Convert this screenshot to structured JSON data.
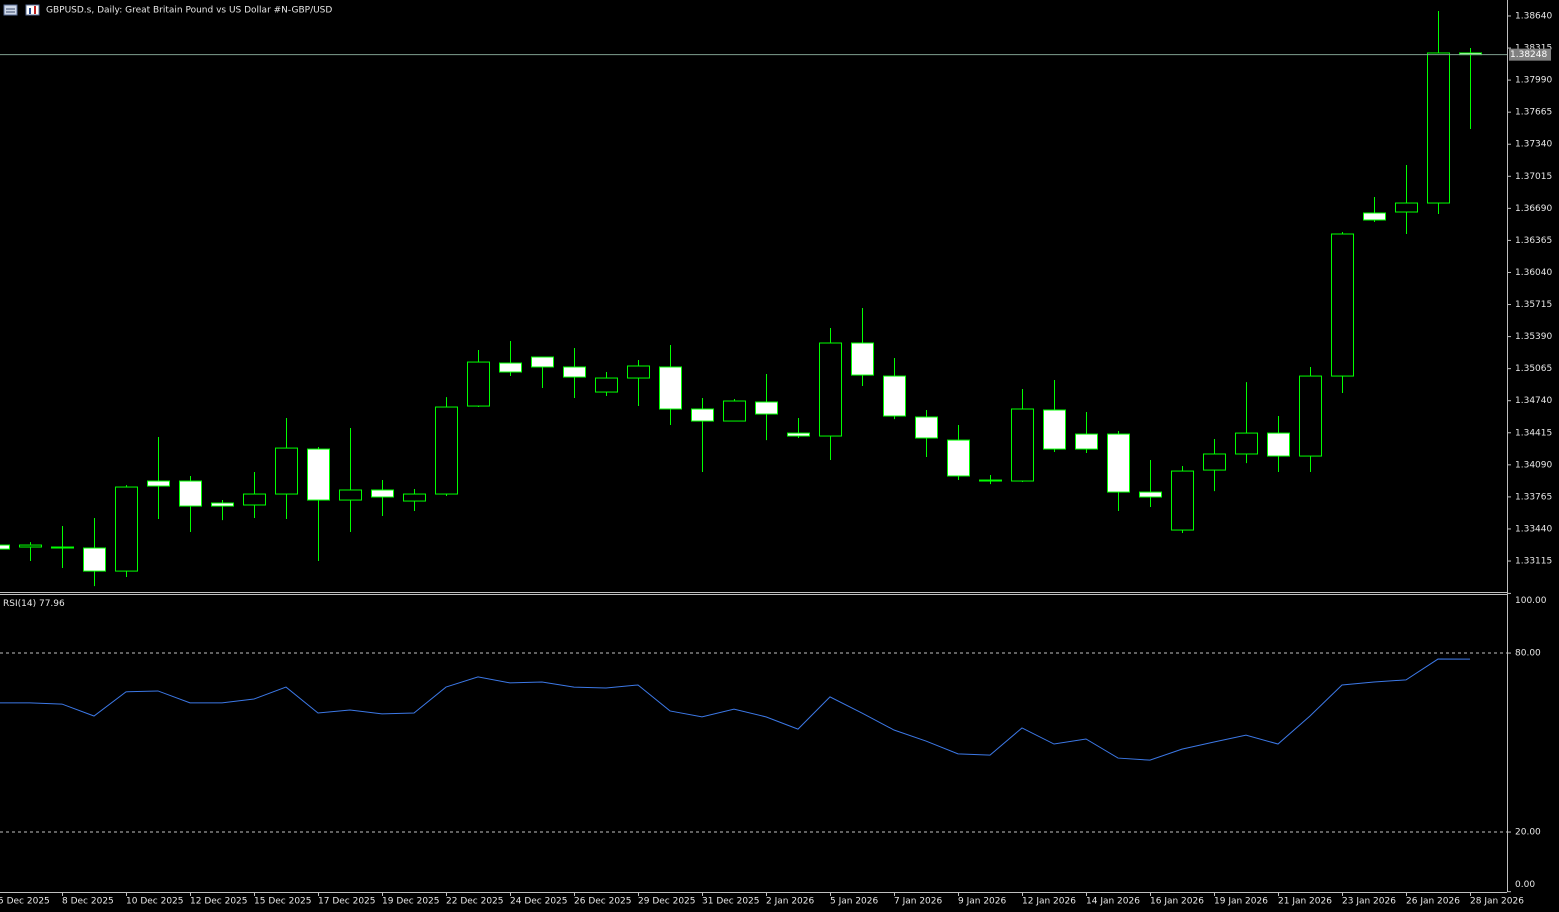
{
  "chart_data": [
    {
      "type": "candlestick",
      "title": "GBPUSD.s, Daily:  Great Britain Pound vs US Dollar #N-GBP/USD",
      "categories": [
        "5 Dec 2025",
        null,
        "8 Dec 2025",
        null,
        "10 Dec 2025",
        null,
        "12 Dec 2025",
        null,
        "15 Dec 2025",
        null,
        "17 Dec 2025",
        null,
        "19 Dec 2025",
        null,
        "22 Dec 2025",
        null,
        "24 Dec 2025",
        null,
        "26 Dec 2025",
        null,
        "29 Dec 2025",
        null,
        "31 Dec 2025",
        null,
        "2 Jan 2026",
        null,
        "5 Jan 2026",
        null,
        "7 Jan 2026",
        null,
        "9 Jan 2026",
        null,
        "12 Jan 2026",
        null,
        "14 Jan 2026",
        null,
        "16 Jan 2026",
        null,
        "19 Jan 2026",
        null,
        "21 Jan 2026",
        null,
        "23 Jan 2026",
        null,
        "26 Jan 2026",
        null,
        "28 Jan 2026"
      ],
      "open": [
        1.33277,
        1.33257,
        1.33257,
        1.33247,
        1.33013,
        1.33926,
        1.33926,
        1.33703,
        1.33683,
        1.33794,
        1.3425,
        1.33733,
        1.33835,
        1.33723,
        1.33794,
        1.34686,
        1.35122,
        1.35183,
        1.35082,
        1.34828,
        1.3497,
        1.35082,
        1.34656,
        1.34534,
        1.34727,
        1.34412,
        1.34382,
        1.35325,
        1.3499,
        1.34575,
        1.34341,
        1.33936,
        1.33926,
        1.34646,
        1.34402,
        1.34402,
        1.33814,
        1.33429,
        1.34037,
        1.342,
        1.34412,
        1.34179,
        1.3499,
        1.36643,
        1.36653,
        1.36744,
        1.38265
      ],
      "high": [
        1.33297,
        1.33307,
        1.3347,
        1.33551,
        1.33885,
        1.34372,
        1.33977,
        1.33733,
        1.34017,
        1.34565,
        1.34271,
        1.34463,
        1.33936,
        1.33845,
        1.34777,
        1.35254,
        1.35345,
        1.35183,
        1.35274,
        1.35031,
        1.35153,
        1.35305,
        1.34767,
        1.34757,
        1.35011,
        1.34565,
        1.35477,
        1.3568,
        1.35173,
        1.34646,
        1.34494,
        1.33987,
        1.34859,
        1.3495,
        1.34625,
        1.34433,
        1.34139,
        1.34078,
        1.34352,
        1.34929,
        1.34585,
        1.35082,
        1.3645,
        1.36805,
        1.37129,
        1.38691,
        1.38316
      ],
      "low": [
        1.33216,
        1.33115,
        1.33044,
        1.32861,
        1.32953,
        1.33541,
        1.33409,
        1.3353,
        1.33551,
        1.33541,
        1.33115,
        1.33409,
        1.33571,
        1.33622,
        1.33774,
        1.34676,
        1.3499,
        1.34869,
        1.34767,
        1.34788,
        1.34686,
        1.34494,
        1.34017,
        1.34534,
        1.34341,
        1.34362,
        1.34139,
        1.34889,
        1.34554,
        1.34169,
        1.33936,
        1.33895,
        1.33916,
        1.3422,
        1.3421,
        1.33622,
        1.33662,
        1.33399,
        1.33824,
        1.34108,
        1.34017,
        1.34017,
        1.34818,
        1.36552,
        1.3643,
        1.36633,
        1.37494
      ],
      "close": [
        1.33236,
        1.33277,
        1.33257,
        1.33013,
        1.33865,
        1.33875,
        1.33672,
        1.33672,
        1.33794,
        1.3426,
        1.33733,
        1.33835,
        1.33764,
        1.33794,
        1.34676,
        1.35132,
        1.35031,
        1.35082,
        1.3498,
        1.3497,
        1.35092,
        1.34656,
        1.34534,
        1.34737,
        1.34605,
        1.34382,
        1.35325,
        1.35,
        1.34585,
        1.34362,
        1.33977,
        1.33926,
        1.34656,
        1.3425,
        1.3425,
        1.33814,
        1.33764,
        1.34027,
        1.342,
        1.34412,
        1.34179,
        1.3499,
        1.3643,
        1.36572,
        1.36744,
        1.38265,
        1.38248
      ],
      "ylim": [
        1.32801,
        1.38802
      ],
      "yticks": [
        {
          "value": 1.3864,
          "label": "1.38640"
        },
        {
          "value": 1.38315,
          "label": "1.38315"
        },
        {
          "value": 1.3799,
          "label": "1.37990"
        },
        {
          "value": 1.37665,
          "label": "1.37665"
        },
        {
          "value": 1.3734,
          "label": "1.37340"
        },
        {
          "value": 1.37015,
          "label": "1.37015"
        },
        {
          "value": 1.3669,
          "label": "1.36690"
        },
        {
          "value": 1.36365,
          "label": "1.36365"
        },
        {
          "value": 1.3604,
          "label": "1.36040"
        },
        {
          "value": 1.35715,
          "label": "1.35715"
        },
        {
          "value": 1.3539,
          "label": "1.35390"
        },
        {
          "value": 1.35065,
          "label": "1.35065"
        },
        {
          "value": 1.3474,
          "label": "1.34740"
        },
        {
          "value": 1.34415,
          "label": "1.34415"
        },
        {
          "value": 1.3409,
          "label": "1.34090"
        },
        {
          "value": 1.33765,
          "label": "1.33765"
        },
        {
          "value": 1.3344,
          "label": "1.33440"
        },
        {
          "value": 1.33115,
          "label": "1.33115"
        }
      ],
      "current_price": {
        "value": 1.38248,
        "label": "1.38248"
      },
      "bull_color": "#000000",
      "bear_color": "#ffffff",
      "wick_color": "#00ff00",
      "price_line_color": "#7f9f8f"
    },
    {
      "type": "line",
      "title": "RSI(14)",
      "values": [
        63.3,
        63.3,
        62.9,
        58.9,
        67.0,
        67.3,
        63.3,
        63.3,
        64.6,
        68.6,
        59.9,
        60.9,
        59.6,
        59.9,
        68.6,
        72.0,
        70.0,
        70.3,
        68.6,
        68.3,
        69.3,
        60.6,
        58.6,
        61.2,
        58.6,
        54.5,
        65.3,
        59.9,
        54.2,
        50.5,
        46.2,
        45.8,
        54.9,
        49.5,
        51.2,
        44.8,
        44.1,
        47.8,
        50.2,
        52.5,
        49.5,
        58.9,
        69.3,
        70.3,
        71.0,
        78.0,
        77.96
      ],
      "color": "#3c78e6",
      "ylim": [
        0,
        100
      ],
      "yticks": [
        {
          "value": 100,
          "label": "100.00"
        },
        {
          "value": 80,
          "label": "80.00"
        },
        {
          "value": 20,
          "label": "20.00"
        },
        {
          "value": 0,
          "label": "0.00"
        }
      ]
    }
  ]
}
